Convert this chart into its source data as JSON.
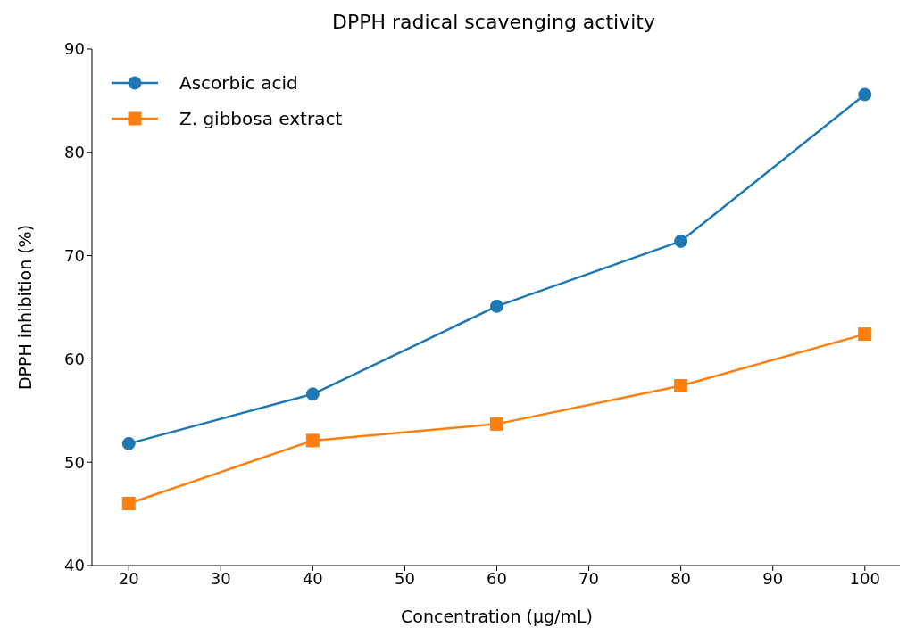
{
  "chart_data": {
    "type": "line",
    "title": "DPPH radical scavenging activity",
    "xlabel": "Concentration (µg/mL)",
    "ylabel": "DPPH inhibition (%)",
    "x": [
      20,
      40,
      60,
      80,
      100
    ],
    "series": [
      {
        "name": "Ascorbic acid",
        "color": "#1f77b4",
        "marker": "circle",
        "values": [
          51.8,
          56.6,
          65.1,
          71.4,
          85.6
        ]
      },
      {
        "name": "Z. gibbosa extract",
        "color": "#ff7f0e",
        "marker": "square",
        "values": [
          46.0,
          52.1,
          53.7,
          57.4,
          62.4
        ]
      }
    ],
    "xlim": [
      16,
      104
    ],
    "xticks": [
      20,
      30,
      40,
      50,
      60,
      70,
      80,
      90,
      100
    ],
    "ylim": [
      40,
      90
    ],
    "yticks": [
      40,
      50,
      60,
      70,
      80,
      90
    ],
    "grid": false,
    "legend": "top left",
    "line_style": "solid"
  }
}
